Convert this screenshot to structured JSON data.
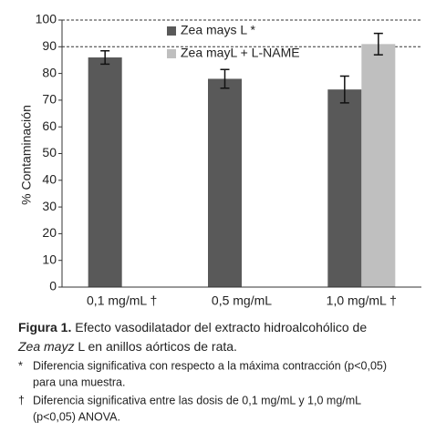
{
  "chart_data": {
    "type": "bar",
    "y_label": "% Contaminación",
    "categories": [
      "0,1 mg/mL †",
      "0,5 mg/mL",
      "1,0 mg/mL †"
    ],
    "series": [
      {
        "name": "Zea mays L *",
        "color": "#595959",
        "values": [
          86,
          78,
          74
        ],
        "errors": [
          2.5,
          3.5,
          5
        ]
      },
      {
        "name": "Zea mayL + L-NAME",
        "color": "#bfbfbf",
        "values": [
          null,
          null,
          91
        ],
        "errors": [
          null,
          null,
          4
        ]
      }
    ],
    "ylim": [
      0,
      100
    ],
    "yticks": [
      0,
      10,
      20,
      30,
      40,
      50,
      60,
      70,
      80,
      90,
      100
    ],
    "grid_lines": [
      90,
      100
    ]
  },
  "caption": {
    "label": "Figura 1.",
    "text1": " Efecto vasodilatador del extracto hidroalcohólico de",
    "italic": "Zea mayz",
    "text2": " L en anillos aórticos de rata."
  },
  "notes": [
    {
      "mark": "*",
      "text": "Diferencia significativa con respecto a la máxima contracción (p<0,05)",
      "text_cont": "para una muestra."
    },
    {
      "mark": "†",
      "text": "Diferencia significativa entre las dosis de 0,1 mg/mL y 1,0 mg/mL",
      "text_cont": "(p<0,05) ANOVA."
    }
  ]
}
